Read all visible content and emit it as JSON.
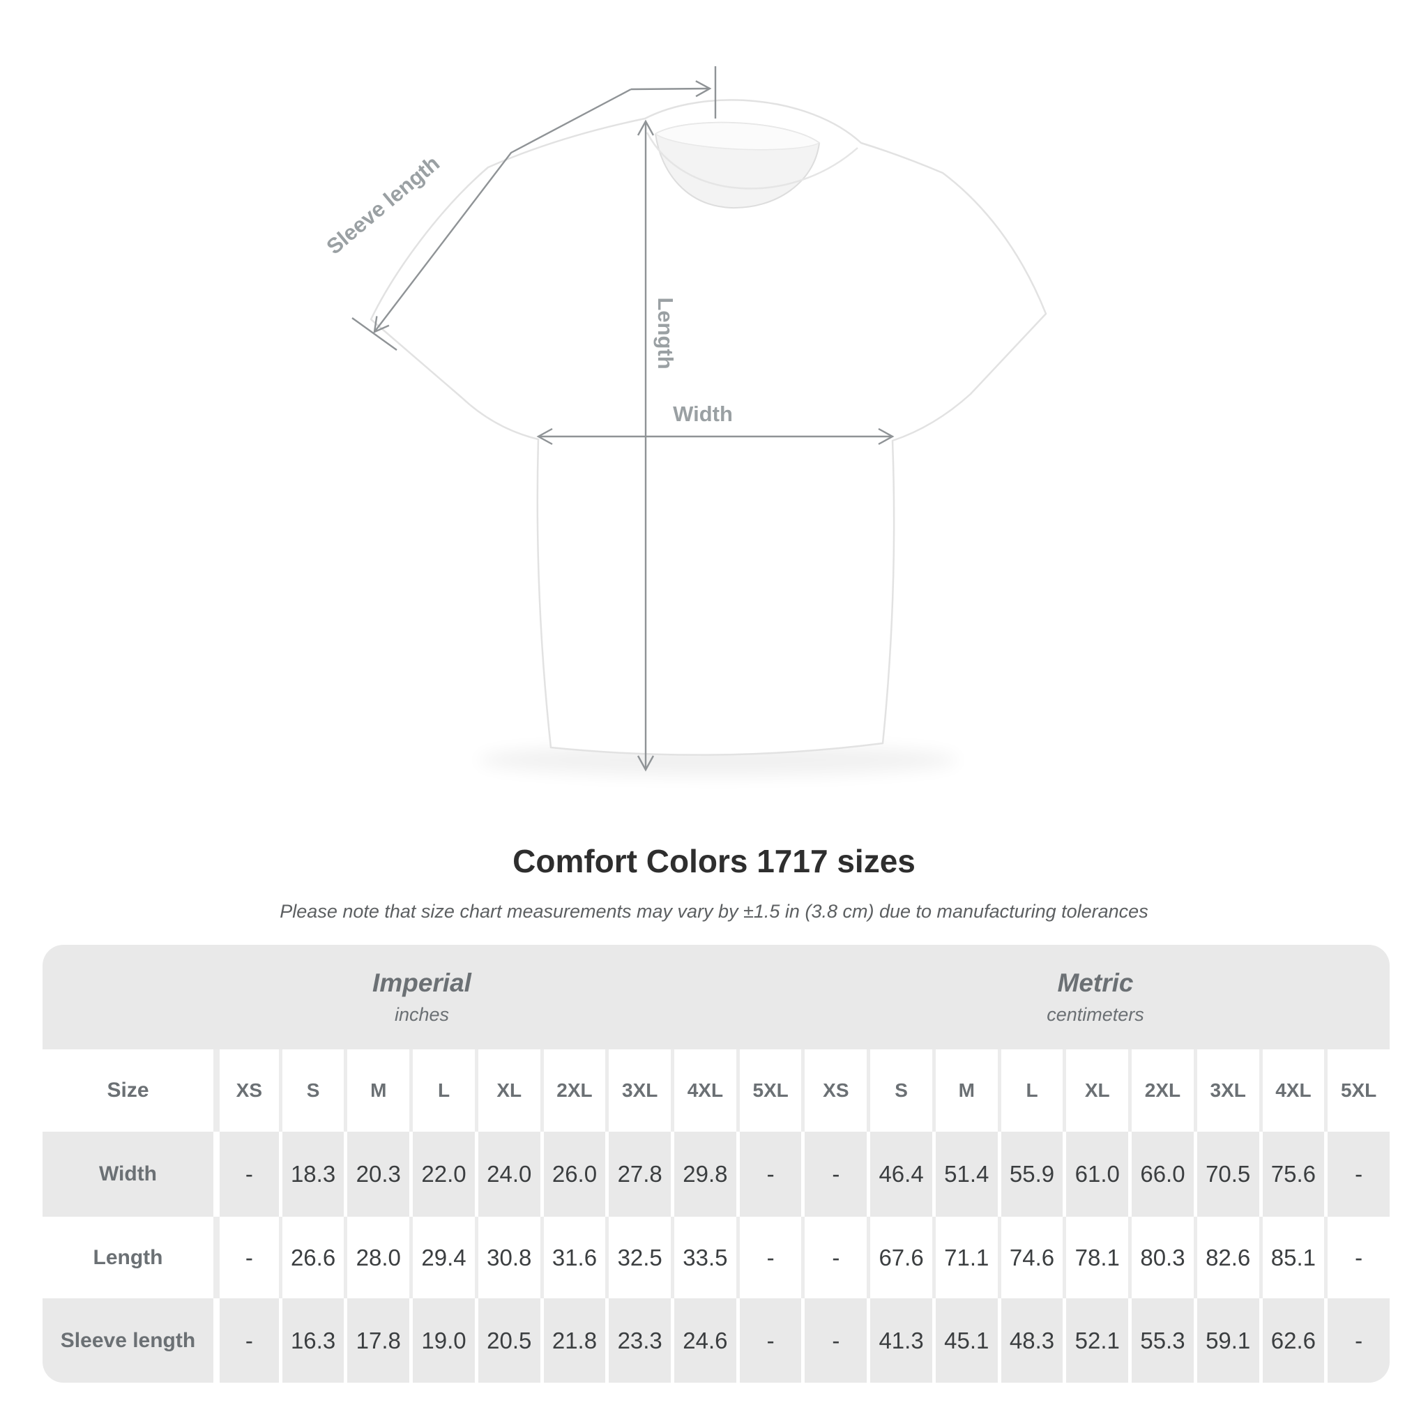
{
  "diagram": {
    "labels": {
      "sleeve_length": "Sleeve length",
      "length": "Length",
      "width": "Width"
    }
  },
  "heading": {
    "title": "Comfort Colors 1717 sizes",
    "subtitle": "Please note that size chart measurements may vary by ±1.5 in (3.8 cm) due to manufacturing tolerances"
  },
  "table": {
    "corner_label": "Size",
    "unit_groups": [
      {
        "name": "Imperial",
        "unit": "inches"
      },
      {
        "name": "Metric",
        "unit": "centimeters"
      }
    ],
    "size_columns": [
      "XS",
      "S",
      "M",
      "L",
      "XL",
      "2XL",
      "3XL",
      "4XL",
      "5XL"
    ],
    "rows": [
      {
        "label": "Width",
        "imperial": [
          "-",
          "18.3",
          "20.3",
          "22.0",
          "24.0",
          "26.0",
          "27.8",
          "29.8",
          "-"
        ],
        "metric": [
          "-",
          "46.4",
          "51.4",
          "55.9",
          "61.0",
          "66.0",
          "70.5",
          "75.6",
          "-"
        ]
      },
      {
        "label": "Length",
        "imperial": [
          "-",
          "26.6",
          "28.0",
          "29.4",
          "30.8",
          "31.6",
          "32.5",
          "33.5",
          "-"
        ],
        "metric": [
          "-",
          "67.6",
          "71.1",
          "74.6",
          "78.1",
          "80.3",
          "82.6",
          "85.1",
          "-"
        ]
      },
      {
        "label": "Sleeve length",
        "imperial": [
          "-",
          "16.3",
          "17.8",
          "19.0",
          "20.5",
          "21.8",
          "23.3",
          "24.6",
          "-"
        ],
        "metric": [
          "-",
          "41.3",
          "45.1",
          "48.3",
          "52.1",
          "55.3",
          "59.1",
          "62.6",
          "-"
        ]
      }
    ]
  },
  "colors": {
    "table_band": "#e9e9e9",
    "muted_text": "#6b7074",
    "value_text": "#3b3e40",
    "title_text": "#2e2e2e",
    "subtitle_text": "#5c5f61",
    "measure_line": "#8f9396",
    "measure_label": "#9aa0a3",
    "shirt_outline": "#e2e2e2"
  }
}
